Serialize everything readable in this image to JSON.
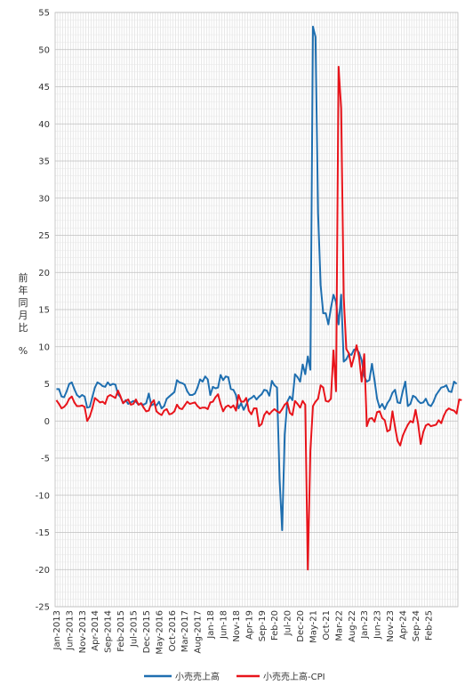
{
  "chart_data": {
    "type": "line",
    "title": "",
    "xlabel": "",
    "ylabel": "前年同月比 %",
    "ylim": [
      -25,
      55
    ],
    "yticks": [
      55,
      50,
      45,
      40,
      35,
      30,
      25,
      20,
      15,
      10,
      5,
      0,
      -5,
      -10,
      -15,
      -20,
      -25
    ],
    "grid": true,
    "legend_position": "bottom",
    "x_labels": [
      "Jan-2013",
      "Jun-2013",
      "Nov-2013",
      "Apr-2014",
      "Sep-2014",
      "Feb-2015",
      "Jul-2015",
      "Dec-2015",
      "May-2016",
      "Oct-2016",
      "Mar-2017",
      "Aug-2017",
      "Jan-18",
      "Jun-18",
      "Nov-18",
      "Apr-19",
      "Sep-19",
      "Feb-20",
      "Jul-20",
      "Dec-20",
      "May-21",
      "Oct-21",
      "Mar-22",
      "Aug-22",
      "Jan-23",
      "Jun-23",
      "Nov-23",
      "Apr-24",
      "Sep-24",
      "Feb-25"
    ],
    "start": "2013-01",
    "colors": {
      "series1": "#1f6fb0",
      "series2": "#e8141b"
    },
    "series": [
      {
        "name": "小売売上高",
        "color": "#1f6fb0",
        "values": [
          4.3,
          4.3,
          3.3,
          3.2,
          4.0,
          5.0,
          5.2,
          4.3,
          3.5,
          3.2,
          3.5,
          3.3,
          1.8,
          1.9,
          3.2,
          4.5,
          5.2,
          5.0,
          4.7,
          4.6,
          5.2,
          4.8,
          5.0,
          4.9,
          3.6,
          3.2,
          2.4,
          2.8,
          2.3,
          2.5,
          2.7,
          2.6,
          2.2,
          2.3,
          2.2,
          2.4,
          3.7,
          2.1,
          2.3,
          2.1,
          2.6,
          1.7,
          2.0,
          3.0,
          3.3,
          3.6,
          3.9,
          5.5,
          5.2,
          5.1,
          4.9,
          4.0,
          3.5,
          3.5,
          3.7,
          4.5,
          5.6,
          5.3,
          6.0,
          5.6,
          3.5,
          4.6,
          4.4,
          4.5,
          6.2,
          5.5,
          6.0,
          5.9,
          4.3,
          4.2,
          3.5,
          1.7,
          2.4,
          1.5,
          2.2,
          2.9,
          3.1,
          3.4,
          2.9,
          3.3,
          3.6,
          4.2,
          4.1,
          3.4,
          5.4,
          4.8,
          4.5,
          -7.9,
          -14.7,
          -1.8,
          2.6,
          3.3,
          2.8,
          6.3,
          5.9,
          5.3,
          7.6,
          6.3,
          8.7,
          6.9,
          53.1,
          51.7,
          28.0,
          18.3,
          14.5,
          14.5,
          13.0,
          15.2,
          17.0,
          16.0,
          13.0,
          17.0,
          8.0,
          8.3,
          9.0,
          8.9,
          9.6,
          9.7,
          9.2,
          8.2,
          6.0,
          5.3,
          5.5,
          7.7,
          5.5,
          3.0,
          1.8,
          2.3,
          1.6,
          2.4,
          2.9,
          3.8,
          4.2,
          2.5,
          2.4,
          4.0,
          5.3,
          2.0,
          2.3,
          3.4,
          3.2,
          2.7,
          2.4,
          2.5,
          3.0,
          2.2,
          2.0,
          2.6,
          3.5,
          4.0,
          4.5,
          4.6,
          4.8,
          4.0,
          3.9,
          5.3,
          5.0
        ]
      },
      {
        "name": "小売売上高-CPI",
        "color": "#e8141b",
        "values": [
          2.8,
          2.3,
          1.7,
          1.9,
          2.3,
          3.0,
          3.3,
          2.5,
          2.0,
          2.0,
          2.1,
          1.9,
          0.0,
          0.6,
          1.7,
          3.1,
          2.8,
          2.5,
          2.6,
          2.3,
          3.3,
          3.5,
          3.3,
          3.1,
          4.1,
          3.3,
          2.4,
          2.7,
          2.9,
          2.2,
          2.3,
          2.9,
          2.2,
          2.4,
          1.8,
          1.3,
          1.4,
          2.4,
          2.8,
          1.3,
          1.0,
          0.8,
          1.4,
          1.6,
          0.9,
          1.0,
          1.3,
          2.2,
          1.7,
          1.6,
          2.1,
          2.6,
          2.3,
          2.4,
          2.5,
          2.0,
          1.7,
          1.8,
          1.8,
          1.6,
          2.5,
          2.6,
          3.2,
          3.6,
          2.3,
          1.3,
          1.9,
          2.1,
          1.8,
          2.1,
          1.4,
          3.5,
          2.6,
          2.6,
          3.1,
          1.4,
          0.9,
          1.7,
          1.7,
          -0.7,
          -0.4,
          0.8,
          1.3,
          0.9,
          1.3,
          1.6,
          1.3,
          1.1,
          1.6,
          2.2,
          2.5,
          1.1,
          0.8,
          2.7,
          2.3,
          1.8,
          2.7,
          2.2,
          -20.0,
          -4.0,
          2.0,
          2.6,
          3.0,
          4.8,
          4.5,
          2.7,
          2.6,
          3.0,
          9.5,
          4.0,
          47.7,
          42.1,
          16.7,
          9.7,
          9.1,
          7.3,
          8.6,
          10.2,
          8.6,
          5.3,
          9.0,
          -0.7,
          0.3,
          0.4,
          -0.1,
          1.2,
          1.3,
          0.4,
          0.1,
          -1.4,
          -1.2,
          1.3,
          -0.8,
          -2.7,
          -3.3,
          -2.0,
          -1.2,
          -0.5,
          0.0,
          -0.2,
          1.5,
          -0.4,
          -3.1,
          -1.5,
          -0.6,
          -0.4,
          -0.7,
          -0.6,
          -0.5,
          0.1,
          -0.3,
          0.7,
          1.4,
          1.7,
          1.5,
          1.4,
          1.0,
          2.9,
          2.8
        ]
      }
    ]
  }
}
